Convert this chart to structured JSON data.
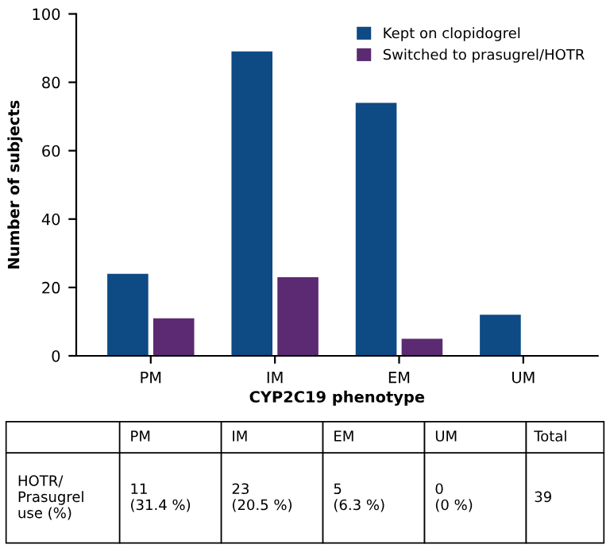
{
  "chart_data": {
    "type": "bar",
    "xlabel": "CYP2C19 phenotype",
    "ylabel": "Number of subjects",
    "categories": [
      "PM",
      "IM",
      "EM",
      "UM"
    ],
    "series": [
      {
        "name": "Kept on clopidogrel",
        "color": "#0e4a84",
        "values": [
          24,
          89,
          74,
          12
        ]
      },
      {
        "name": "Switched to prasugrel/HOTR",
        "color": "#5c2a72",
        "values": [
          11,
          23,
          5,
          0
        ]
      }
    ],
    "ylim": [
      0,
      100
    ],
    "yticks": [
      0,
      20,
      40,
      60,
      80,
      100
    ],
    "grid": false,
    "legend": "top right",
    "annotations": [
      "HOTR/\nPrasugrel\nuse (%)",
      "Total",
      "39",
      "11\n(31.4 %)",
      "23\n(20.5 %)",
      "5\n(6.3 %)",
      "0\n(0 %)"
    ]
  }
}
